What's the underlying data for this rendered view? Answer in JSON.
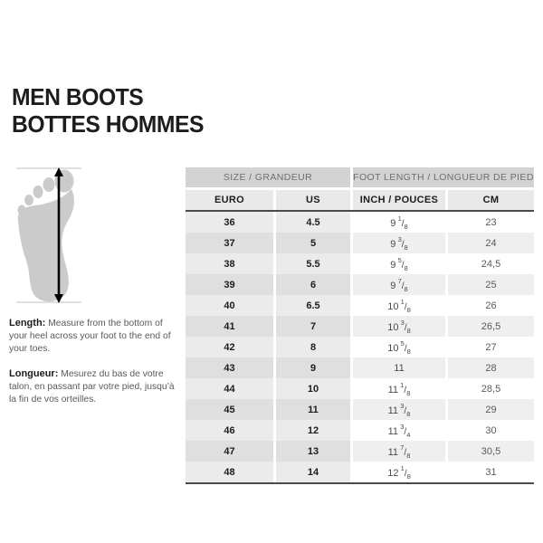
{
  "title": {
    "line1": "MEN BOOTS",
    "line2": "BOTTES HOMMES"
  },
  "instructions": {
    "length_label": "Length:",
    "length_text": "Measure from the bottom of your heel across your foot to the end of your toes.",
    "longueur_label": "Longueur:",
    "longueur_text": "Mesurez du bas de votre talon, en passant par votre pied, jusqu’à la fin de vos orteilles."
  },
  "icons": {
    "foot": "foot-silhouette-icon",
    "arrow": "length-measure-arrow"
  },
  "colors": {
    "ink": "#1d1d1d",
    "gray_text": "#5a5a5a",
    "group_header_bg": "#d3d3d3",
    "group_header_text": "#6e6e6e",
    "column_header_bg": "#e9e9e9",
    "row_left_light": "#ebebeb",
    "row_left_dark": "#dfdfdf",
    "row_right_light": "#ffffff",
    "row_right_dark": "#efefef",
    "dark_rule": "#4a4a4a",
    "foot_fill": "#cbcbcb"
  },
  "table": {
    "group_headers": {
      "size": "SIZE / GRANDEUR",
      "foot_length": "FOOT LENGTH / LONGUEUR DE PIED"
    },
    "column_headers": {
      "euro": "EURO",
      "us": "US",
      "inch": "INCH / POUCES",
      "cm": "CM"
    },
    "rows": [
      {
        "euro": "36",
        "us": "4.5",
        "inch": "9 1/8",
        "cm": "23"
      },
      {
        "euro": "37",
        "us": "5",
        "inch": "9 3/8",
        "cm": "24"
      },
      {
        "euro": "38",
        "us": "5.5",
        "inch": "9 5/8",
        "cm": "24,5"
      },
      {
        "euro": "39",
        "us": "6",
        "inch": "9 7/8",
        "cm": "25"
      },
      {
        "euro": "40",
        "us": "6.5",
        "inch": "10 1/8",
        "cm": "26"
      },
      {
        "euro": "41",
        "us": "7",
        "inch": "10 3/8",
        "cm": "26,5"
      },
      {
        "euro": "42",
        "us": "8",
        "inch": "10 5/8",
        "cm": "27"
      },
      {
        "euro": "43",
        "us": "9",
        "inch": "11",
        "cm": "28"
      },
      {
        "euro": "44",
        "us": "10",
        "inch": "11 1/8",
        "cm": "28,5"
      },
      {
        "euro": "45",
        "us": "11",
        "inch": "11 3/8",
        "cm": "29"
      },
      {
        "euro": "46",
        "us": "12",
        "inch": "11 3/4",
        "cm": "30"
      },
      {
        "euro": "47",
        "us": "13",
        "inch": "11 7/8",
        "cm": "30,5"
      },
      {
        "euro": "48",
        "us": "14",
        "inch": "12 1/8",
        "cm": "31"
      }
    ]
  }
}
